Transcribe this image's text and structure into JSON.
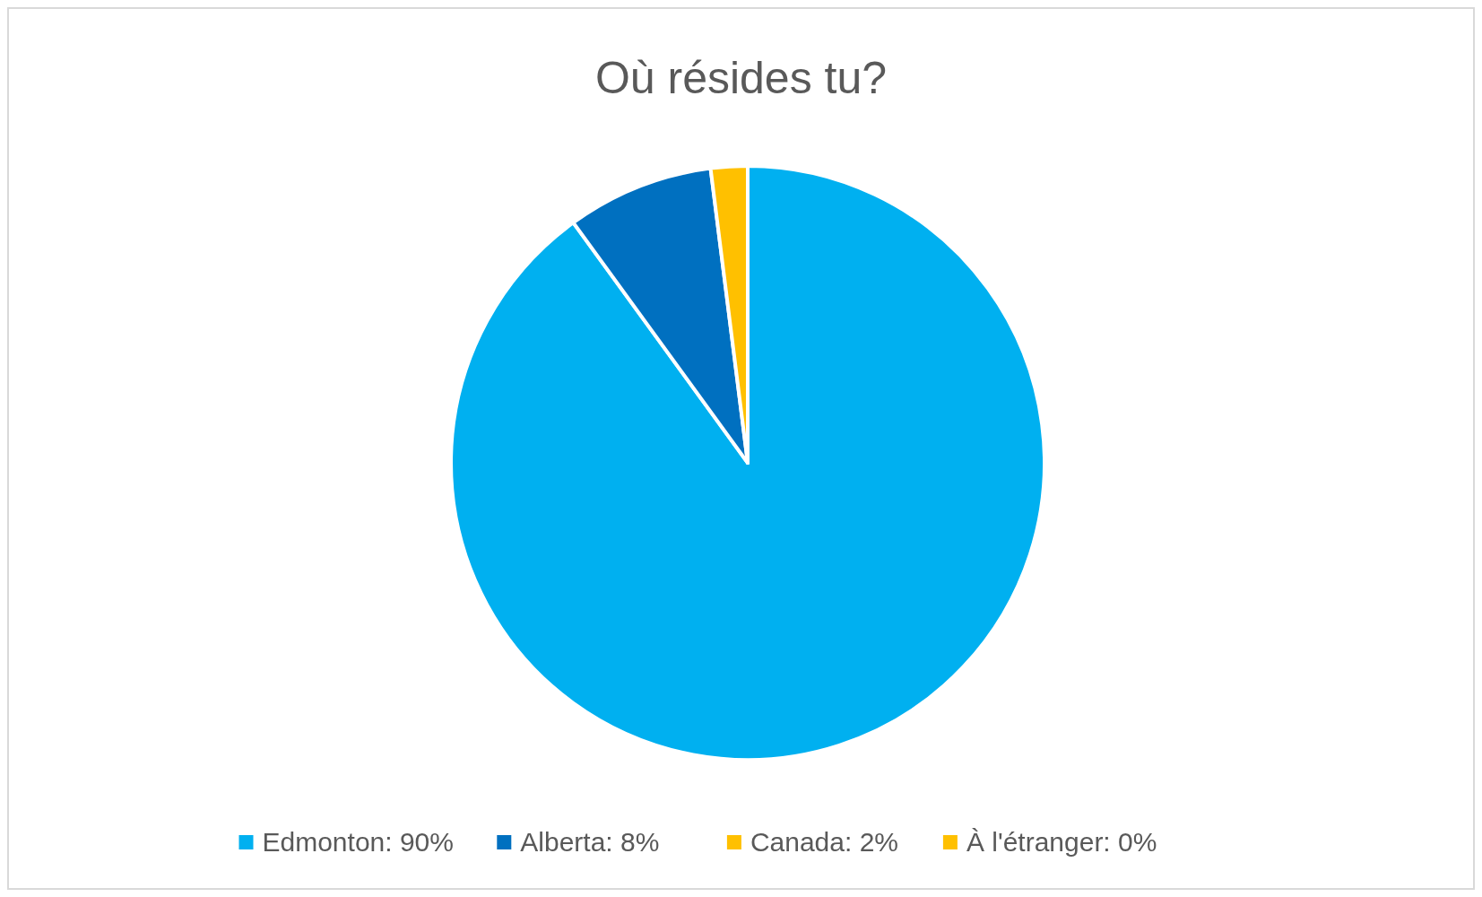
{
  "chart_data": {
    "type": "pie",
    "title": "Où résides tu?",
    "categories": [
      "Edmonton: 90%",
      "Alberta: 8%",
      "Canada: 2%",
      "À l'étranger: 0%"
    ],
    "values": [
      90,
      8,
      2,
      0
    ],
    "colors": [
      "#00b0f0",
      "#0070c0",
      "#ffc000",
      "#ffc000"
    ],
    "legend": "bottom"
  }
}
